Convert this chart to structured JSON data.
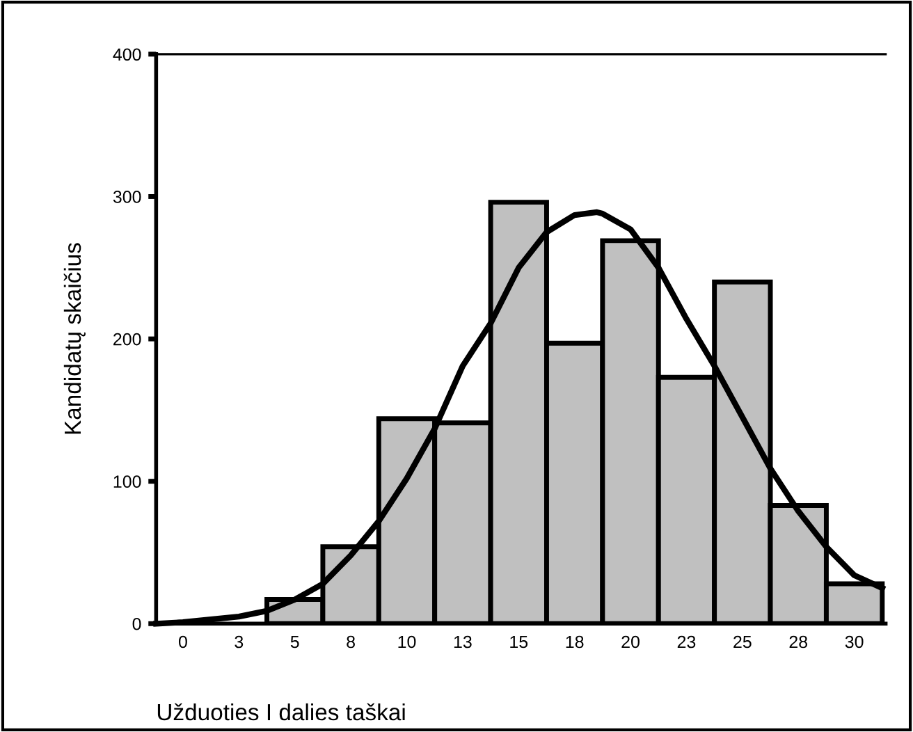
{
  "chart_data": {
    "type": "histogram",
    "xlabel": "Užduoties I dalies taškai",
    "ylabel": "Kandidatų skaičius",
    "bins": [
      -1.25,
      1.25,
      3.75,
      6.25,
      8.75,
      11.25,
      13.75,
      16.25,
      18.75,
      21.25,
      23.75,
      26.25,
      28.75,
      31.25
    ],
    "values": [
      null,
      null,
      17,
      54,
      144,
      141,
      296,
      197,
      269,
      173,
      240,
      83,
      28
    ],
    "color": "#c0c0c0",
    "series": [
      {
        "type": "line",
        "color": "#000000",
        "x": [
          -1.2,
          0,
          2.5,
          3.75,
          5,
          6.25,
          7.5,
          8.75,
          10,
          11.25,
          12.5,
          13.75,
          15,
          16.25,
          17.5,
          18.5,
          18.75,
          20,
          21.25,
          22.5,
          23.75,
          25,
          26.25,
          27.5,
          28.75,
          30,
          31.25
        ],
        "values": [
          0,
          1,
          5,
          9,
          17,
          28,
          48,
          72,
          102,
          137,
          181,
          211,
          250,
          275,
          287,
          289,
          288,
          277,
          250,
          214,
          181,
          145,
          109,
          79,
          54,
          34,
          25
        ]
      }
    ],
    "xlim": [
      -1.2,
      31.4
    ],
    "ylim": [
      0,
      400
    ],
    "xticks": [
      {
        "value": 0,
        "label": "0"
      },
      {
        "value": 2.5,
        "label": "3"
      },
      {
        "value": 5,
        "label": "5"
      },
      {
        "value": 7.5,
        "label": "8"
      },
      {
        "value": 10,
        "label": "10"
      },
      {
        "value": 12.5,
        "label": "13"
      },
      {
        "value": 15,
        "label": "15"
      },
      {
        "value": 17.5,
        "label": "18"
      },
      {
        "value": 20,
        "label": "20"
      },
      {
        "value": 22.5,
        "label": "23"
      },
      {
        "value": 25,
        "label": "25"
      },
      {
        "value": 27.5,
        "label": "28"
      },
      {
        "value": 30,
        "label": "30"
      }
    ],
    "yticks": [
      0,
      100,
      200,
      300,
      400
    ],
    "grid": false,
    "legend": false
  }
}
